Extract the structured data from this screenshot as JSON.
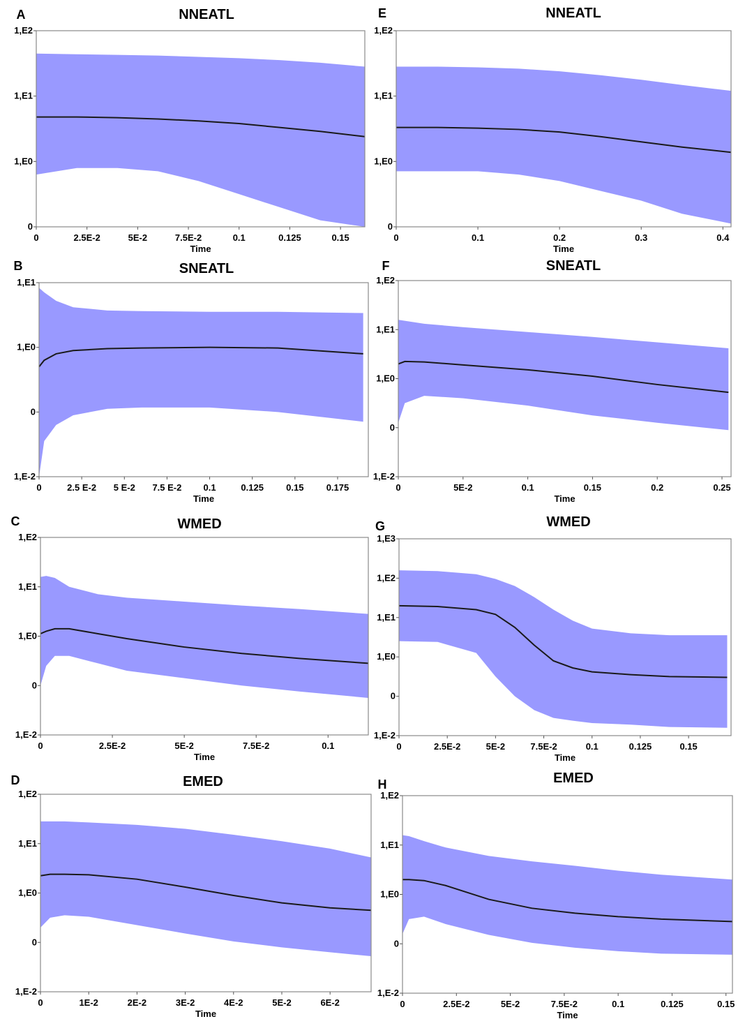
{
  "chart_data": [
    {
      "panel": "A",
      "title": "NNEATL",
      "type": "area",
      "xlabel": "Time",
      "xlim": [
        0,
        0.162
      ],
      "xticks": [
        {
          "v": 0,
          "label": "0"
        },
        {
          "v": 0.025,
          "label": "2.5E-2"
        },
        {
          "v": 0.05,
          "label": "5E-2"
        },
        {
          "v": 0.075,
          "label": "7.5E-2"
        },
        {
          "v": 0.1,
          "label": "0.1"
        },
        {
          "v": 0.125,
          "label": "0.125"
        },
        {
          "v": 0.15,
          "label": "0.15"
        }
      ],
      "yticks": [
        "0",
        "1,E0",
        "1,E1",
        "1,E2"
      ],
      "x": [
        0,
        0.02,
        0.04,
        0.06,
        0.08,
        0.1,
        0.12,
        0.14,
        0.162
      ],
      "upper": [
        1.65,
        1.64,
        1.63,
        1.62,
        1.6,
        1.58,
        1.55,
        1.51,
        1.45
      ],
      "median": [
        0.68,
        0.68,
        0.67,
        0.65,
        0.62,
        0.58,
        0.52,
        0.46,
        0.38
      ],
      "lower": [
        -0.2,
        -0.1,
        -0.1,
        -0.15,
        -0.3,
        -0.5,
        -0.7,
        -0.9,
        -1.0
      ]
    },
    {
      "panel": "E",
      "title": "NNEATL",
      "type": "area",
      "xlabel": "Time",
      "xlim": [
        0,
        0.41
      ],
      "xticks": [
        {
          "v": 0,
          "label": "0"
        },
        {
          "v": 0.1,
          "label": "0.1"
        },
        {
          "v": 0.2,
          "label": "0.2"
        },
        {
          "v": 0.3,
          "label": "0.3"
        },
        {
          "v": 0.4,
          "label": "0.4"
        }
      ],
      "yticks": [
        "0",
        "1,E0",
        "1,E1",
        "1,E2"
      ],
      "x": [
        0,
        0.05,
        0.1,
        0.15,
        0.2,
        0.25,
        0.3,
        0.35,
        0.41
      ],
      "upper": [
        1.45,
        1.45,
        1.44,
        1.42,
        1.38,
        1.32,
        1.25,
        1.17,
        1.08
      ],
      "median": [
        0.52,
        0.52,
        0.51,
        0.49,
        0.45,
        0.38,
        0.3,
        0.22,
        0.14
      ],
      "lower": [
        -0.15,
        -0.15,
        -0.15,
        -0.2,
        -0.3,
        -0.45,
        -0.6,
        -0.8,
        -0.95
      ]
    },
    {
      "panel": "B",
      "title": "SNEATL",
      "type": "area",
      "xlabel": "Time",
      "xlim": [
        0,
        0.193
      ],
      "xticks": [
        {
          "v": 0,
          "label": "0"
        },
        {
          "v": 0.025,
          "label": "2.5 E-2"
        },
        {
          "v": 0.05,
          "label": "5 E-2"
        },
        {
          "v": 0.075,
          "label": "7.5 E-2"
        },
        {
          "v": 0.1,
          "label": "0.1"
        },
        {
          "v": 0.125,
          "label": "0.125"
        },
        {
          "v": 0.15,
          "label": "0.15"
        },
        {
          "v": 0.175,
          "label": "0.175"
        }
      ],
      "yticks": [
        "1,E-2",
        "0",
        "1,E0",
        "1,E1"
      ],
      "x": [
        0,
        0.003,
        0.01,
        0.02,
        0.04,
        0.06,
        0.1,
        0.14,
        0.19
      ],
      "upper": [
        0.92,
        0.85,
        0.72,
        0.62,
        0.57,
        0.56,
        0.55,
        0.55,
        0.53
      ],
      "median": [
        -0.3,
        -0.2,
        -0.1,
        -0.05,
        -0.02,
        -0.01,
        0.0,
        -0.01,
        -0.1
      ],
      "lower": [
        -2.0,
        -1.45,
        -1.2,
        -1.05,
        -0.95,
        -0.93,
        -0.93,
        -1.0,
        -1.15
      ]
    },
    {
      "panel": "F",
      "title": "SNEATL",
      "type": "area",
      "xlabel": "Time",
      "xlim": [
        0,
        0.257
      ],
      "xticks": [
        {
          "v": 0,
          "label": "0"
        },
        {
          "v": 0.05,
          "label": "5E-2"
        },
        {
          "v": 0.1,
          "label": "0.1"
        },
        {
          "v": 0.15,
          "label": "0.15"
        },
        {
          "v": 0.2,
          "label": "0.2"
        },
        {
          "v": 0.25,
          "label": "0.25"
        }
      ],
      "yticks": [
        "1,E-2",
        "0",
        "1,E0",
        "1,E1",
        "1,E2"
      ],
      "x": [
        0,
        0.005,
        0.02,
        0.05,
        0.1,
        0.15,
        0.2,
        0.255
      ],
      "upper": [
        1.2,
        1.18,
        1.12,
        1.05,
        0.95,
        0.85,
        0.74,
        0.62
      ],
      "median": [
        0.3,
        0.35,
        0.34,
        0.28,
        0.18,
        0.05,
        -0.12,
        -0.28
      ],
      "lower": [
        -0.9,
        -0.5,
        -0.35,
        -0.4,
        -0.55,
        -0.75,
        -0.9,
        -1.05
      ]
    },
    {
      "panel": "C",
      "title": "WMED",
      "type": "area",
      "xlabel": "Time",
      "xlim": [
        0,
        0.114
      ],
      "xticks": [
        {
          "v": 0,
          "label": "0"
        },
        {
          "v": 0.025,
          "label": "2.5E-2"
        },
        {
          "v": 0.05,
          "label": "5E-2"
        },
        {
          "v": 0.075,
          "label": "7.5E-2"
        },
        {
          "v": 0.1,
          "label": "0.1"
        }
      ],
      "yticks": [
        "1,E-2",
        "0",
        "1,E0",
        "1,E1",
        "1,E2"
      ],
      "x": [
        0,
        0.002,
        0.005,
        0.01,
        0.02,
        0.03,
        0.05,
        0.07,
        0.09,
        0.114
      ],
      "upper": [
        1.2,
        1.22,
        1.18,
        1.0,
        0.85,
        0.78,
        0.7,
        0.62,
        0.55,
        0.45
      ],
      "median": [
        0.05,
        0.1,
        0.15,
        0.15,
        0.05,
        -0.05,
        -0.22,
        -0.35,
        -0.45,
        -0.55
      ],
      "lower": [
        -1.0,
        -0.6,
        -0.4,
        -0.4,
        -0.55,
        -0.7,
        -0.85,
        -1.0,
        -1.12,
        -1.25
      ]
    },
    {
      "panel": "G",
      "title": "WMED",
      "type": "area",
      "xlabel": "Time",
      "xlim": [
        0,
        0.172
      ],
      "xticks": [
        {
          "v": 0,
          "label": "0"
        },
        {
          "v": 0.025,
          "label": "2.5E-2"
        },
        {
          "v": 0.05,
          "label": "5E-2"
        },
        {
          "v": 0.075,
          "label": "7.5E-2"
        },
        {
          "v": 0.1,
          "label": "0.1"
        },
        {
          "v": 0.125,
          "label": "0.125"
        },
        {
          "v": 0.15,
          "label": "0.15"
        }
      ],
      "yticks": [
        "1,E-2",
        "0",
        "1,E0",
        "1,E1",
        "1,E2",
        "1,E3"
      ],
      "x": [
        0,
        0.02,
        0.04,
        0.05,
        0.06,
        0.07,
        0.08,
        0.09,
        0.1,
        0.12,
        0.14,
        0.17
      ],
      "upper": [
        2.2,
        2.18,
        2.1,
        1.98,
        1.8,
        1.52,
        1.2,
        0.92,
        0.72,
        0.6,
        0.55,
        0.55
      ],
      "median": [
        1.3,
        1.28,
        1.2,
        1.08,
        0.75,
        0.3,
        -0.1,
        -0.28,
        -0.38,
        -0.45,
        -0.5,
        -0.52
      ],
      "lower": [
        0.4,
        0.38,
        0.1,
        -0.5,
        -1.0,
        -1.35,
        -1.55,
        -1.62,
        -1.68,
        -1.72,
        -1.78,
        -1.8
      ]
    },
    {
      "panel": "D",
      "title": "EMED",
      "type": "area",
      "xlabel": "Time",
      "xlim": [
        0,
        0.0685
      ],
      "xticks": [
        {
          "v": 0,
          "label": "0"
        },
        {
          "v": 0.01,
          "label": "1E-2"
        },
        {
          "v": 0.02,
          "label": "2E-2"
        },
        {
          "v": 0.03,
          "label": "3E-2"
        },
        {
          "v": 0.04,
          "label": "4E-2"
        },
        {
          "v": 0.05,
          "label": "5E-2"
        },
        {
          "v": 0.06,
          "label": "6E-2"
        }
      ],
      "yticks": [
        "1,E-2",
        "0",
        "1,E0",
        "1,E1",
        "1,E2"
      ],
      "x": [
        0,
        0.002,
        0.005,
        0.01,
        0.02,
        0.03,
        0.04,
        0.05,
        0.06,
        0.0685
      ],
      "upper": [
        1.45,
        1.45,
        1.45,
        1.43,
        1.38,
        1.3,
        1.18,
        1.05,
        0.9,
        0.72
      ],
      "median": [
        0.35,
        0.38,
        0.38,
        0.37,
        0.28,
        0.12,
        -0.05,
        -0.2,
        -0.3,
        -0.35
      ],
      "lower": [
        -0.7,
        -0.5,
        -0.45,
        -0.48,
        -0.65,
        -0.82,
        -0.98,
        -1.1,
        -1.2,
        -1.28
      ]
    },
    {
      "panel": "H",
      "title": "EMED",
      "type": "area",
      "xlabel": "Time",
      "xlim": [
        0,
        0.153
      ],
      "xticks": [
        {
          "v": 0,
          "label": "0"
        },
        {
          "v": 0.025,
          "label": "2.5E-2"
        },
        {
          "v": 0.05,
          "label": "5E-2"
        },
        {
          "v": 0.075,
          "label": "7.5E-2"
        },
        {
          "v": 0.1,
          "label": "0.1"
        },
        {
          "v": 0.125,
          "label": "0.125"
        },
        {
          "v": 0.15,
          "label": "0.15"
        }
      ],
      "yticks": [
        "1,E-2",
        "0",
        "1,E0",
        "1,E1",
        "1,E2"
      ],
      "x": [
        0,
        0.003,
        0.01,
        0.02,
        0.04,
        0.06,
        0.08,
        0.1,
        0.12,
        0.153
      ],
      "upper": [
        1.2,
        1.18,
        1.08,
        0.95,
        0.78,
        0.67,
        0.58,
        0.48,
        0.4,
        0.3
      ],
      "median": [
        0.3,
        0.3,
        0.28,
        0.18,
        -0.1,
        -0.28,
        -0.38,
        -0.45,
        -0.5,
        -0.55
      ],
      "lower": [
        -0.8,
        -0.5,
        -0.45,
        -0.6,
        -0.82,
        -0.98,
        -1.08,
        -1.15,
        -1.2,
        -1.22
      ]
    }
  ]
}
